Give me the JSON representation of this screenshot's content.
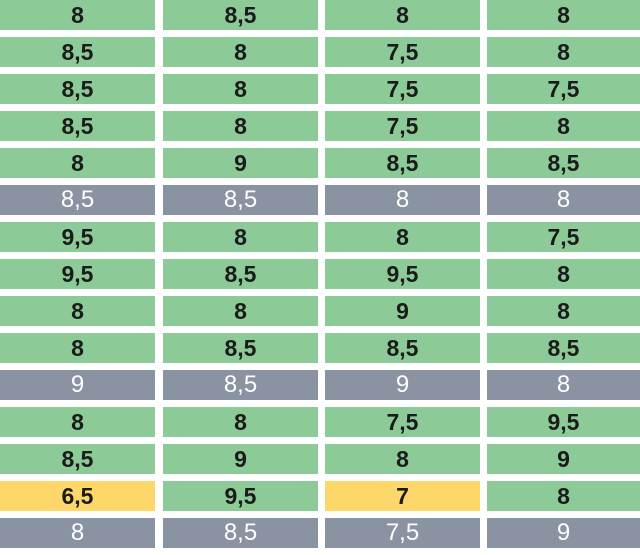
{
  "colors": {
    "green": "#8ccb98",
    "gray": "#8993a2",
    "yellow": "#fdd76a"
  },
  "rows": [
    {
      "style": "green",
      "cells": [
        "8",
        "8,5",
        "8",
        "8"
      ],
      "highlight": []
    },
    {
      "style": "green",
      "cells": [
        "8,5",
        "8",
        "7,5",
        "8"
      ],
      "highlight": []
    },
    {
      "style": "green",
      "cells": [
        "8,5",
        "8",
        "7,5",
        "7,5"
      ],
      "highlight": []
    },
    {
      "style": "green",
      "cells": [
        "8,5",
        "8",
        "7,5",
        "8"
      ],
      "highlight": []
    },
    {
      "style": "green",
      "cells": [
        "8",
        "9",
        "8,5",
        "8,5"
      ],
      "highlight": []
    },
    {
      "style": "gray",
      "cells": [
        "8,5",
        "8,5",
        "8",
        "8"
      ],
      "highlight": []
    },
    {
      "style": "green",
      "cells": [
        "9,5",
        "8",
        "8",
        "7,5"
      ],
      "highlight": []
    },
    {
      "style": "green",
      "cells": [
        "9,5",
        "8,5",
        "9,5",
        "8"
      ],
      "highlight": []
    },
    {
      "style": "green",
      "cells": [
        "8",
        "8",
        "9",
        "8"
      ],
      "highlight": []
    },
    {
      "style": "green",
      "cells": [
        "8",
        "8,5",
        "8,5",
        "8,5"
      ],
      "highlight": []
    },
    {
      "style": "gray",
      "cells": [
        "9",
        "8,5",
        "9",
        "8"
      ],
      "highlight": []
    },
    {
      "style": "green",
      "cells": [
        "8",
        "8",
        "7,5",
        "9,5"
      ],
      "highlight": []
    },
    {
      "style": "green",
      "cells": [
        "8,5",
        "9",
        "8",
        "9"
      ],
      "highlight": []
    },
    {
      "style": "green",
      "cells": [
        "6,5",
        "9,5",
        "7",
        "8"
      ],
      "highlight": [
        0,
        2
      ]
    },
    {
      "style": "gray",
      "cells": [
        "8",
        "8,5",
        "7,5",
        "9"
      ],
      "highlight": []
    }
  ]
}
